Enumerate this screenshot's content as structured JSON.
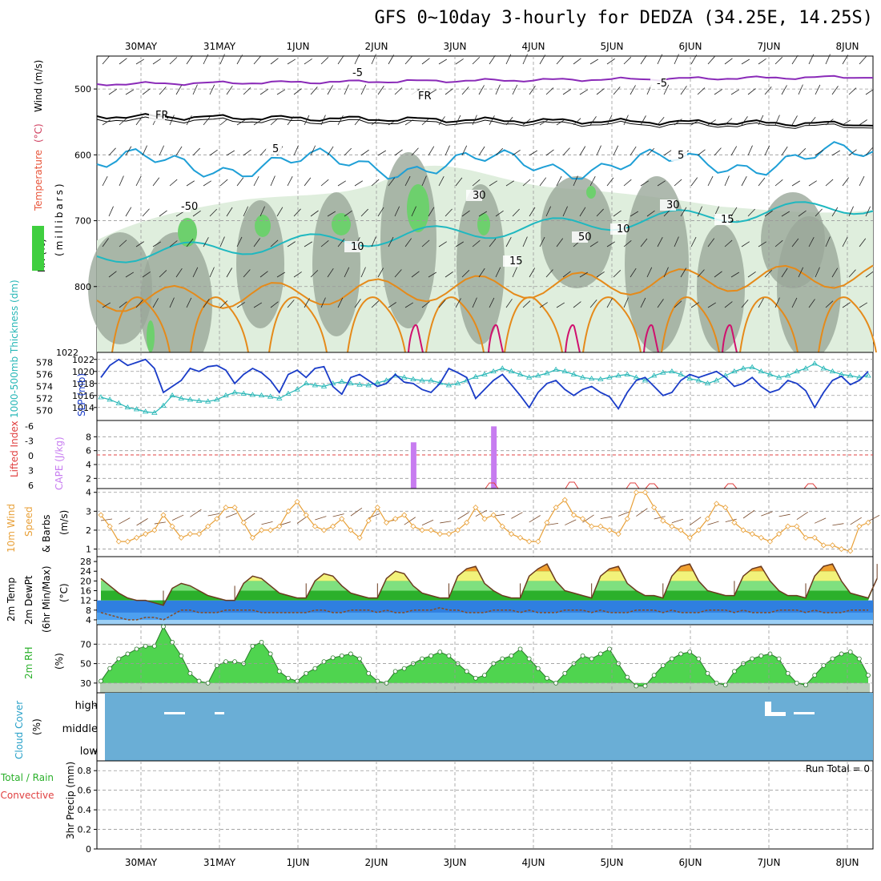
{
  "title": "GFS 0~10day 3-hourly for DEDZA (34.25E, 14.25S)",
  "colors": {
    "rh_dark": "#9aa89a",
    "rh_light": "#dfeedd",
    "rh_green": "#6dd06d",
    "temp_purple": "#8a2ab8",
    "temp_cyan": "#1e9fd6",
    "temp_teal": "#1fb8c0",
    "temp_orange": "#e58a1a",
    "temp_magenta": "#d0106e",
    "slp_blue": "#1a3cc8",
    "thick_cyan": "#27b7b7",
    "cape_purple": "#c77cf0",
    "wind_orange": "#e8a038",
    "barb_brown": "#7a4a2a",
    "temp_green": "#2bb02b",
    "temp_yellow": "#f2f27a",
    "temp_orange_fill": "#f0a030",
    "dew_blue": "#2f7fe0",
    "rh_fill": "#3ccf3c",
    "cloud_blue": "#6aaed6"
  },
  "chart_data": {
    "type": "meteogram",
    "x_dates": [
      "30MAY",
      "31MAY",
      "1JUN",
      "2JUN",
      "3JUN",
      "4JUN",
      "5JUN",
      "6JUN",
      "7JUN",
      "8JUN"
    ],
    "panels": {
      "upper_air": {
        "ylabel_parts": [
          "RH (%)",
          "Temperature",
          "(°C)",
          "Wind (m/s)"
        ],
        "ylabel_unit": "(millibars)",
        "yticks": [
          500,
          600,
          700,
          800
        ],
        "ylim": [
          900,
          450
        ],
        "contour_labels": [
          "-5",
          "-5",
          "FR",
          "FR",
          "5",
          "5",
          "10",
          "10",
          "15",
          "-50",
          "50",
          "30",
          "30",
          "15"
        ]
      },
      "slp_thickness": {
        "ylabel_left": "1000-500mb Thickness (dm)",
        "ylabel_right": "SLP (mb)",
        "thickness_ticks": [
          570,
          572,
          574,
          576,
          578
        ],
        "slp_ticks": [
          1014,
          1016,
          1018,
          1020,
          1022
        ],
        "slp": [
          1019.0,
          1021.0,
          1022.0,
          1021.0,
          1021.5,
          1022.0,
          1020.5,
          1016.5,
          1017.5,
          1018.5,
          1020.5,
          1020.0,
          1020.8,
          1021.0,
          1020.2,
          1018.0,
          1019.5,
          1020.5,
          1019.8,
          1018.5,
          1016.5,
          1019.5,
          1020.2,
          1019.0,
          1020.5,
          1020.8,
          1017.5,
          1016.2,
          1019.0,
          1019.5,
          1018.5,
          1017.5,
          1018.0,
          1019.5,
          1018.2,
          1018.0,
          1017.0,
          1016.5,
          1018.0,
          1020.5,
          1019.8,
          1019.0,
          1015.5,
          1017.0,
          1018.5,
          1019.5,
          1017.8,
          1016.0,
          1014.0,
          1016.5,
          1018.0,
          1018.5,
          1017.0,
          1016.0,
          1017.0,
          1017.5,
          1016.5,
          1015.8,
          1013.8,
          1016.5,
          1018.5,
          1019.0,
          1017.5,
          1016.0,
          1016.5,
          1018.5,
          1019.5,
          1019.0,
          1019.5,
          1020.0,
          1019.0,
          1017.5,
          1018.0,
          1019.0,
          1017.5,
          1016.5,
          1017.0,
          1018.5,
          1018.0,
          1016.8,
          1014.0,
          1016.5,
          1018.5,
          1019.2,
          1017.8,
          1018.5,
          1020.0
        ],
        "thickness": [
          572.2,
          571.8,
          571.2,
          570.5,
          570.2,
          569.8,
          569.6,
          570.8,
          572.5,
          572.0,
          571.8,
          571.6,
          571.5,
          571.8,
          572.5,
          573.0,
          572.8,
          572.6,
          572.5,
          572.3,
          572.0,
          572.8,
          573.5,
          574.5,
          574.2,
          574.0,
          574.5,
          574.8,
          574.5,
          574.3,
          574.2,
          574.6,
          575.0,
          575.8,
          575.5,
          575.2,
          575.0,
          575.0,
          574.6,
          574.2,
          574.5,
          575.0,
          575.6,
          576.0,
          576.5,
          577.0,
          576.5,
          576.0,
          575.5,
          575.8,
          576.2,
          576.8,
          576.5,
          576.0,
          575.5,
          575.3,
          575.2,
          575.5,
          575.8,
          576.0,
          575.5,
          575.0,
          575.8,
          576.3,
          576.5,
          576.0,
          575.3,
          575.0,
          574.5,
          575.0,
          575.8,
          576.5,
          577.0,
          577.2,
          576.5,
          576.0,
          575.5,
          575.8,
          576.5,
          577.0,
          577.8,
          577.0,
          576.5,
          576.0,
          575.8,
          575.5,
          575.8
        ]
      },
      "cape_li": {
        "ylabel_left": "Lifted Index",
        "ylabel_right": "CAPE (J/kg)",
        "li_ticks": [
          "-6",
          "-3",
          "0",
          "3",
          "6"
        ],
        "cape_ticks": [
          2,
          4,
          6,
          8
        ],
        "cape_bars": [
          {
            "i": 35,
            "value": 7.2
          },
          {
            "i": 44,
            "value": 9.5
          }
        ]
      },
      "wind10m": {
        "ylabel": [
          "10m Wind",
          "Speed",
          "& Barbs",
          "(m/s)"
        ],
        "yticks": [
          1,
          2,
          3,
          4
        ],
        "ylim": [
          0.6,
          4.2
        ],
        "speed": [
          2.8,
          2.2,
          1.4,
          1.4,
          1.6,
          1.8,
          2.0,
          2.8,
          2.2,
          1.6,
          1.8,
          1.8,
          2.2,
          2.6,
          3.2,
          3.2,
          2.4,
          1.6,
          2.0,
          2.0,
          2.2,
          3.0,
          3.5,
          2.8,
          2.2,
          2.0,
          2.2,
          2.6,
          2.0,
          1.6,
          2.5,
          3.2,
          2.4,
          2.6,
          2.8,
          2.2,
          2.0,
          2.0,
          1.8,
          1.8,
          2.0,
          2.4,
          3.2,
          2.6,
          2.8,
          2.2,
          1.8,
          1.6,
          1.4,
          1.4,
          2.4,
          3.2,
          3.6,
          2.8,
          2.6,
          2.2,
          2.2,
          2.0,
          1.8,
          2.6,
          4.0,
          4.0,
          3.2,
          2.5,
          2.2,
          2.0,
          1.6,
          2.0,
          2.6,
          3.4,
          3.2,
          2.4,
          2.0,
          1.8,
          1.6,
          1.4,
          1.8,
          2.2,
          2.2,
          1.6,
          1.6,
          1.2,
          1.2,
          1.0,
          0.9,
          2.2,
          2.4
        ]
      },
      "temp2m": {
        "ylabel": [
          "2m Temp",
          "2m DewPt",
          "(6hr Min/Max)",
          "(°C)"
        ],
        "yticks": [
          4,
          8,
          12,
          16,
          20,
          24,
          28
        ],
        "ylim": [
          2,
          30
        ],
        "temp": [
          21,
          18,
          15,
          13,
          12,
          12,
          11,
          10,
          17,
          19,
          18,
          16,
          14,
          13,
          12,
          12,
          19,
          22,
          21,
          18,
          15,
          14,
          13,
          13,
          20,
          23,
          22,
          18,
          15,
          14,
          13,
          13,
          21,
          24,
          23,
          18,
          15,
          14,
          13,
          13,
          22,
          25,
          26,
          19,
          16,
          14,
          13,
          13,
          22,
          25,
          27,
          20,
          16,
          15,
          14,
          13,
          22,
          25,
          26,
          19,
          16,
          14,
          14,
          13,
          22,
          26,
          27,
          20,
          16,
          15,
          14,
          14,
          22,
          25,
          26,
          20,
          16,
          14,
          14,
          13,
          22,
          26,
          27,
          20,
          15,
          14,
          13,
          21
        ],
        "dewpt": [
          7,
          6,
          5,
          4,
          4,
          5,
          5,
          4,
          6,
          8,
          8,
          7,
          7,
          7,
          8,
          8,
          8,
          8,
          7,
          7,
          7,
          7,
          7,
          7,
          8,
          8,
          7,
          7,
          8,
          8,
          8,
          7,
          8,
          7,
          7,
          8,
          8,
          8,
          9,
          8,
          8,
          7,
          7,
          7,
          8,
          8,
          8,
          7,
          8,
          7,
          7,
          7,
          8,
          8,
          8,
          7,
          8,
          7,
          7,
          7,
          8,
          8,
          8,
          7,
          8,
          7,
          7,
          7,
          8,
          8,
          8,
          7,
          8,
          7,
          7,
          7,
          8,
          8,
          8,
          7,
          8,
          7,
          7,
          7,
          8,
          8,
          8
        ]
      },
      "rh2m": {
        "ylabel": [
          "2m RH",
          "(%)"
        ],
        "yticks": [
          30,
          50,
          70
        ],
        "ylim": [
          20,
          90
        ],
        "rh": [
          32,
          45,
          55,
          60,
          65,
          68,
          68,
          88,
          72,
          58,
          40,
          32,
          30,
          48,
          52,
          52,
          50,
          68,
          72,
          60,
          42,
          35,
          32,
          40,
          45,
          52,
          56,
          58,
          60,
          55,
          40,
          32,
          30,
          42,
          45,
          50,
          55,
          58,
          62,
          58,
          50,
          42,
          35,
          38,
          50,
          55,
          58,
          65,
          55,
          45,
          35,
          30,
          40,
          50,
          58,
          55,
          60,
          65,
          50,
          36,
          27,
          27,
          38,
          48,
          55,
          60,
          62,
          55,
          40,
          30,
          28,
          42,
          50,
          55,
          58,
          60,
          55,
          40,
          30,
          28,
          38,
          48,
          55,
          60,
          62,
          55,
          38
        ]
      },
      "cloud": {
        "ylabel": [
          "Cloud Cover",
          "(%)"
        ],
        "levels": [
          "high",
          "middle",
          "low"
        ]
      },
      "precip": {
        "ylabel_left": [
          "Total / Rain",
          "Convective"
        ],
        "ylabel_right": "3hr Precip (mm)",
        "yticks": [
          "0",
          "0.2",
          "0.4",
          "0.6",
          "0.8"
        ],
        "run_total": "Run Total = 0"
      }
    }
  }
}
